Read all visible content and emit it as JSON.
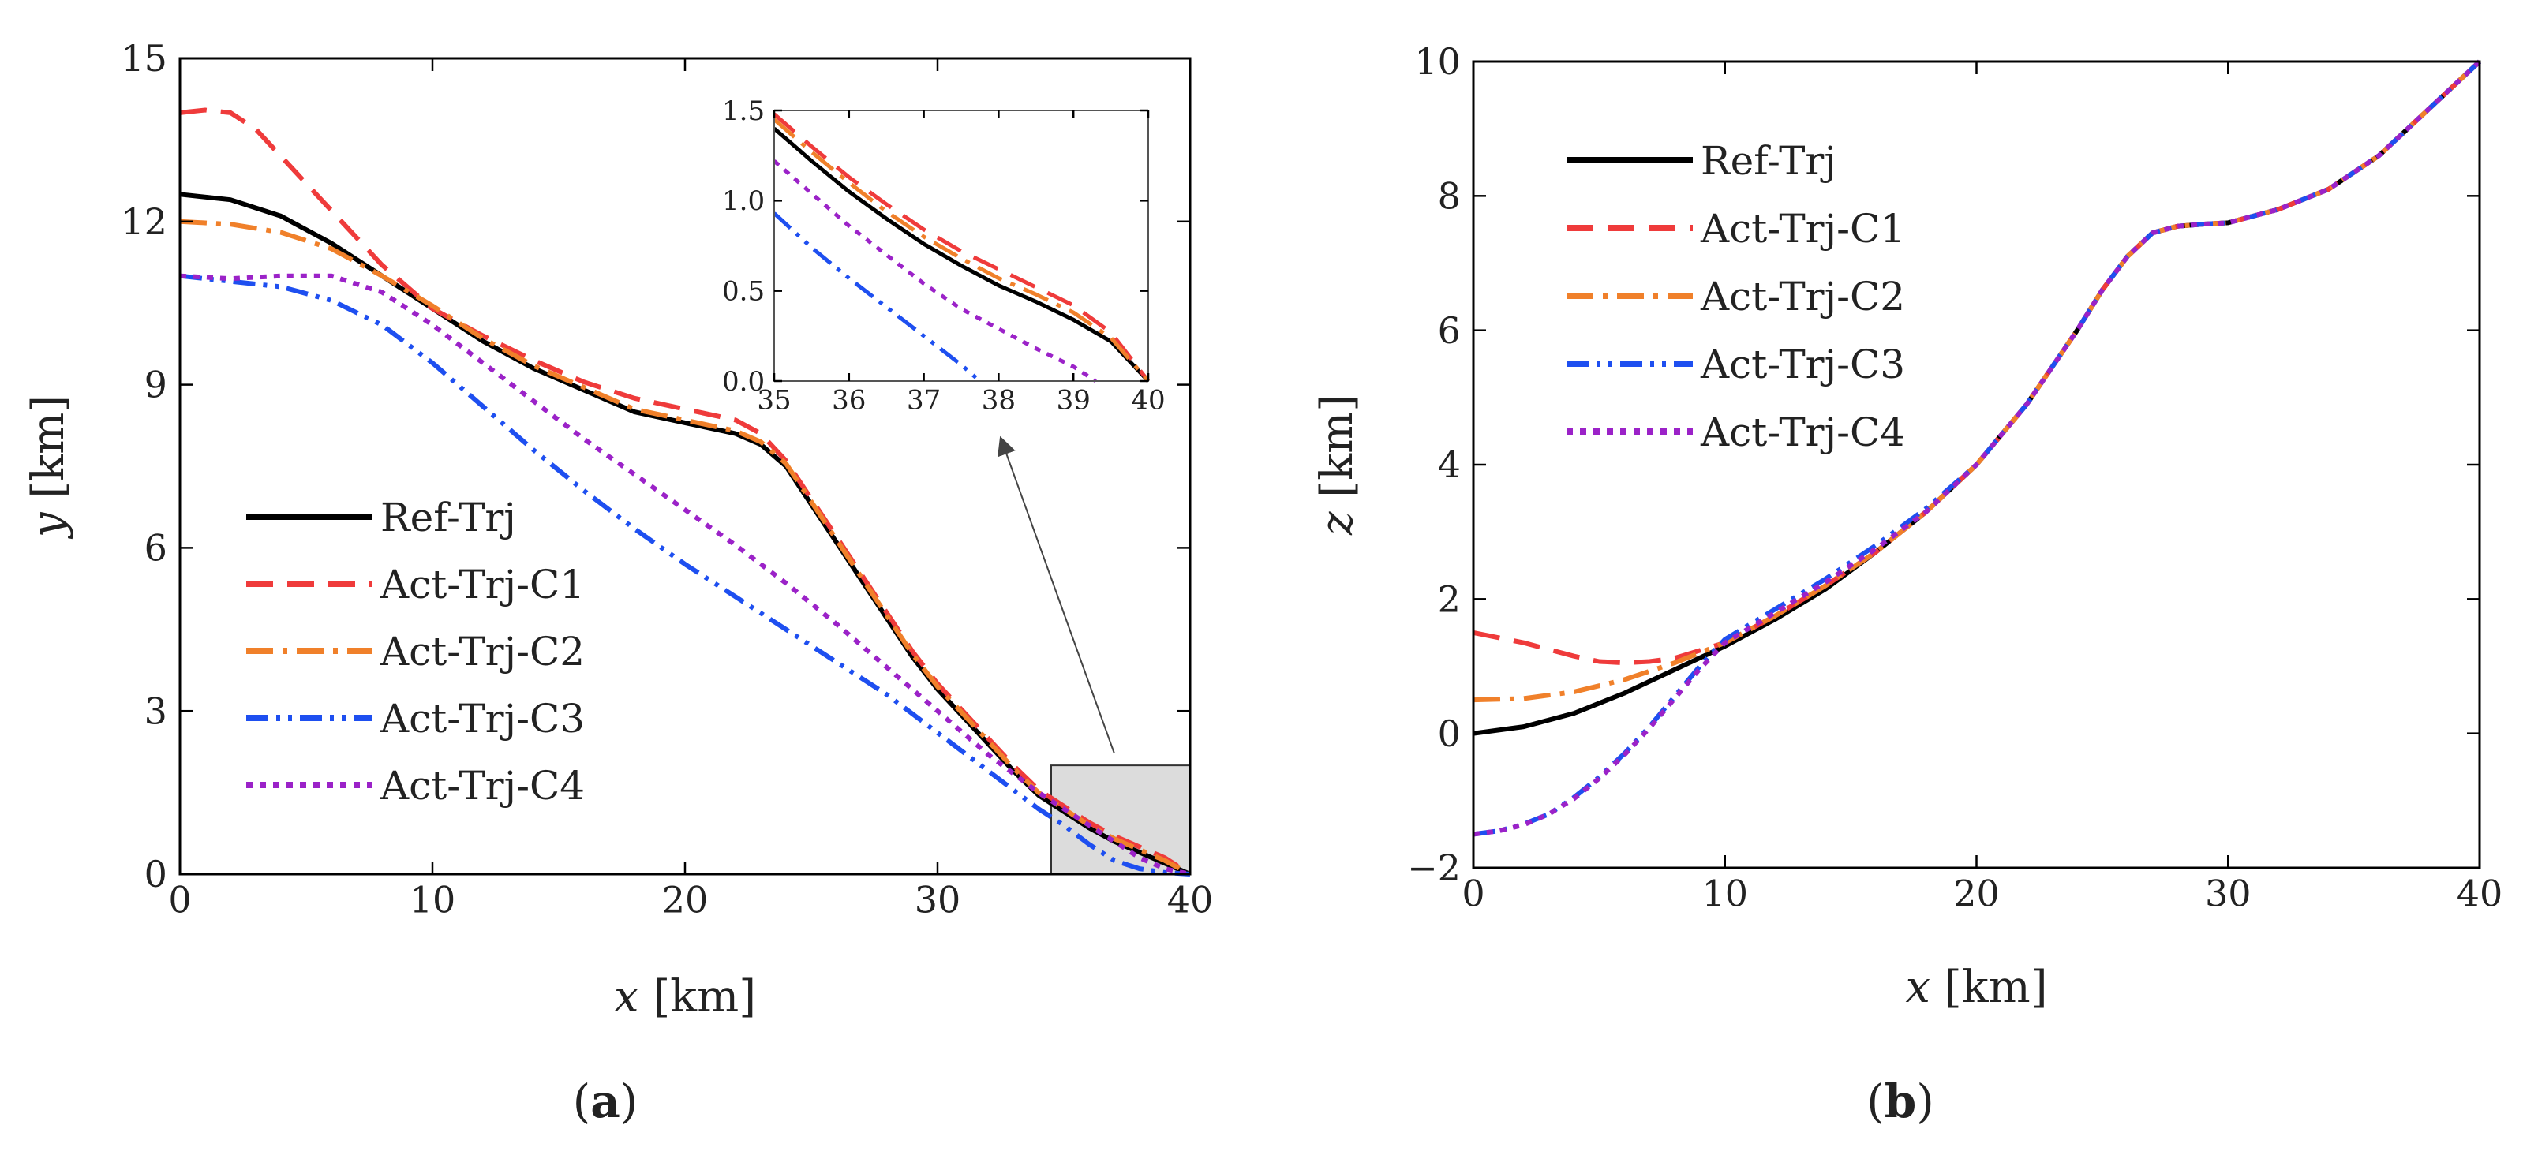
{
  "figure": {
    "panels": [
      {
        "label_open": "(",
        "label_letter": "a",
        "label_close": ")"
      },
      {
        "label_open": "(",
        "label_letter": "b",
        "label_close": ")"
      }
    ]
  },
  "colors": {
    "ref": "#000000",
    "c1": "#ef3b3b",
    "c2": "#f0802a",
    "c3": "#1e4ff0",
    "c4": "#9b22c8",
    "zoom_box": "#dcdcdc"
  },
  "chart_data": [
    {
      "type": "line",
      "panel": "a",
      "xlabel_var": "x",
      "xlabel_unit": " [km]",
      "ylabel_var": "y",
      "ylabel_unit": " [km]",
      "xlim": [
        0,
        40
      ],
      "ylim": [
        0,
        15
      ],
      "xticks": [
        "0",
        "10",
        "20",
        "30",
        "40"
      ],
      "yticks": [
        "0",
        "3",
        "6",
        "9",
        "12",
        "15"
      ],
      "legend_position": "center-left",
      "series": [
        {
          "name": "Ref-Trj",
          "key": "ref",
          "dash": "solid",
          "x": [
            0,
            2,
            4,
            6,
            8,
            10,
            12,
            14,
            16,
            18,
            20,
            22,
            23,
            24,
            25,
            26,
            27,
            28,
            29,
            30,
            31,
            32,
            33,
            34,
            35,
            36,
            37,
            38,
            39,
            40
          ],
          "y": [
            12.5,
            12.4,
            12.1,
            11.6,
            11.0,
            10.4,
            9.8,
            9.3,
            8.9,
            8.5,
            8.3,
            8.1,
            7.9,
            7.5,
            6.8,
            6.1,
            5.4,
            4.7,
            4.0,
            3.4,
            2.9,
            2.4,
            1.9,
            1.45,
            1.15,
            0.85,
            0.6,
            0.4,
            0.2,
            0.0
          ]
        },
        {
          "name": "Act-Trj-C1",
          "key": "c1",
          "dash": "dashed",
          "x": [
            0,
            1,
            2,
            3,
            4,
            6,
            8,
            10,
            12,
            14,
            16,
            18,
            20,
            22,
            23,
            24,
            25,
            26,
            27,
            28,
            29,
            30,
            31,
            32,
            33,
            34,
            35,
            36,
            37,
            38,
            39,
            40
          ],
          "y": [
            14.0,
            14.05,
            14.0,
            13.7,
            13.2,
            12.2,
            11.2,
            10.4,
            9.9,
            9.45,
            9.05,
            8.75,
            8.55,
            8.35,
            8.1,
            7.6,
            6.9,
            6.2,
            5.5,
            4.8,
            4.1,
            3.5,
            3.0,
            2.5,
            2.0,
            1.55,
            1.25,
            0.95,
            0.7,
            0.5,
            0.3,
            0.0
          ]
        },
        {
          "name": "Act-Trj-C2",
          "key": "c2",
          "dash": "dashdot",
          "x": [
            0,
            2,
            4,
            6,
            8,
            10,
            12,
            14,
            16,
            18,
            20,
            22,
            23,
            24,
            25,
            26,
            27,
            28,
            29,
            30,
            31,
            32,
            33,
            34,
            35,
            36,
            37,
            38,
            39,
            40
          ],
          "y": [
            12.0,
            11.95,
            11.8,
            11.5,
            11.0,
            10.45,
            9.85,
            9.35,
            8.95,
            8.55,
            8.35,
            8.15,
            7.95,
            7.55,
            6.85,
            6.15,
            5.45,
            4.75,
            4.05,
            3.45,
            2.95,
            2.45,
            1.95,
            1.5,
            1.2,
            0.9,
            0.65,
            0.45,
            0.25,
            0.0
          ]
        },
        {
          "name": "Act-Trj-C3",
          "key": "c3",
          "dash": "dashdotdot",
          "x": [
            0,
            2,
            4,
            6,
            8,
            10,
            12,
            14,
            16,
            18,
            20,
            22,
            24,
            26,
            28,
            30,
            32,
            34,
            35,
            36,
            37,
            38,
            39,
            40
          ],
          "y": [
            11.0,
            10.9,
            10.8,
            10.55,
            10.1,
            9.4,
            8.6,
            7.8,
            7.05,
            6.35,
            5.7,
            5.1,
            4.5,
            3.9,
            3.3,
            2.6,
            1.9,
            1.2,
            0.9,
            0.55,
            0.25,
            0.1,
            0.03,
            0.0
          ]
        },
        {
          "name": "Act-Trj-C4",
          "key": "c4",
          "dash": "dotted",
          "x": [
            0,
            2,
            4,
            6,
            8,
            10,
            12,
            14,
            16,
            18,
            20,
            22,
            24,
            26,
            28,
            30,
            32,
            34,
            35,
            36,
            37,
            38,
            39,
            40
          ],
          "y": [
            11.0,
            10.95,
            11.0,
            11.0,
            10.7,
            10.1,
            9.4,
            8.7,
            8.0,
            7.35,
            6.7,
            6.05,
            5.35,
            4.6,
            3.8,
            3.0,
            2.2,
            1.5,
            1.2,
            0.9,
            0.6,
            0.3,
            0.1,
            0.0
          ]
        }
      ],
      "inset": {
        "xlim": [
          35,
          40
        ],
        "ylim": [
          0,
          1.5
        ],
        "xticks": [
          "35",
          "36",
          "37",
          "38",
          "39",
          "40"
        ],
        "yticks": [
          "0.0",
          "0.5",
          "1.0",
          "1.5"
        ],
        "zoom_region": {
          "x": [
            34.5,
            40
          ],
          "y": [
            0,
            2
          ]
        },
        "series": [
          {
            "key": "ref",
            "dash": "solid",
            "x": [
              35,
              35.5,
              36,
              36.5,
              37,
              37.5,
              38,
              38.5,
              39,
              39.5,
              40
            ],
            "y": [
              1.4,
              1.22,
              1.05,
              0.9,
              0.76,
              0.64,
              0.53,
              0.44,
              0.34,
              0.22,
              0.0
            ]
          },
          {
            "key": "c1",
            "dash": "dashed",
            "x": [
              35,
              35.5,
              36,
              36.5,
              37,
              37.5,
              38,
              38.5,
              39,
              39.5,
              40
            ],
            "y": [
              1.48,
              1.3,
              1.13,
              0.98,
              0.84,
              0.72,
              0.62,
              0.52,
              0.42,
              0.27,
              0.0
            ]
          },
          {
            "key": "c2",
            "dash": "dashdot",
            "x": [
              35,
              35.5,
              36,
              36.5,
              37,
              37.5,
              38,
              38.5,
              39,
              39.5,
              40
            ],
            "y": [
              1.45,
              1.27,
              1.1,
              0.94,
              0.8,
              0.68,
              0.57,
              0.48,
              0.38,
              0.24,
              0.0
            ]
          },
          {
            "key": "c3",
            "dash": "dashdotdot",
            "x": [
              35,
              35.5,
              36,
              36.5,
              37,
              37.5,
              37.75
            ],
            "y": [
              0.93,
              0.74,
              0.57,
              0.41,
              0.25,
              0.09,
              0.0
            ]
          },
          {
            "key": "c4",
            "dash": "dotted",
            "x": [
              35,
              35.5,
              36,
              36.5,
              37,
              37.5,
              38,
              38.5,
              39,
              39.3
            ],
            "y": [
              1.22,
              1.04,
              0.86,
              0.7,
              0.54,
              0.4,
              0.29,
              0.18,
              0.08,
              0.0
            ]
          }
        ]
      }
    },
    {
      "type": "line",
      "panel": "b",
      "xlabel_var": "x",
      "xlabel_unit": " [km]",
      "ylabel_var": "z",
      "ylabel_unit": " [km]",
      "xlim": [
        0,
        40
      ],
      "ylim": [
        -2,
        10
      ],
      "xticks": [
        "0",
        "10",
        "20",
        "30",
        "40"
      ],
      "yticks": [
        "−2",
        "0",
        "2",
        "4",
        "6",
        "8",
        "10"
      ],
      "legend_position": "top-left",
      "series": [
        {
          "name": "Ref-Trj",
          "key": "ref",
          "dash": "solid",
          "x": [
            0,
            2,
            4,
            6,
            8,
            10,
            12,
            14,
            16,
            18,
            20,
            22,
            24,
            25,
            26,
            27,
            28,
            29,
            30,
            32,
            34,
            36,
            38,
            40
          ],
          "y": [
            0.0,
            0.1,
            0.3,
            0.6,
            0.95,
            1.3,
            1.7,
            2.15,
            2.7,
            3.3,
            4.0,
            4.9,
            6.0,
            6.6,
            7.1,
            7.45,
            7.55,
            7.58,
            7.6,
            7.8,
            8.1,
            8.6,
            9.3,
            10.0
          ]
        },
        {
          "name": "Act-Trj-C1",
          "key": "c1",
          "dash": "dashed",
          "x": [
            0,
            2,
            4,
            5,
            6,
            7,
            8,
            10,
            12,
            14,
            16,
            18,
            20,
            22,
            24,
            25,
            26,
            27,
            28,
            29,
            30,
            32,
            34,
            36,
            38,
            40
          ],
          "y": [
            1.5,
            1.35,
            1.15,
            1.07,
            1.05,
            1.07,
            1.12,
            1.35,
            1.75,
            2.2,
            2.7,
            3.3,
            4.0,
            4.9,
            6.0,
            6.6,
            7.1,
            7.45,
            7.55,
            7.58,
            7.6,
            7.8,
            8.1,
            8.6,
            9.3,
            10.0
          ]
        },
        {
          "name": "Act-Trj-C2",
          "key": "c2",
          "dash": "dashdot",
          "x": [
            0,
            2,
            4,
            6,
            8,
            10,
            12,
            14,
            16,
            18,
            20,
            22,
            24,
            25,
            26,
            27,
            28,
            29,
            30,
            32,
            34,
            36,
            38,
            40
          ],
          "y": [
            0.5,
            0.52,
            0.62,
            0.8,
            1.05,
            1.35,
            1.75,
            2.2,
            2.7,
            3.3,
            4.0,
            4.9,
            6.0,
            6.6,
            7.1,
            7.45,
            7.55,
            7.58,
            7.6,
            7.8,
            8.1,
            8.6,
            9.3,
            10.0
          ]
        },
        {
          "name": "Act-Trj-C3",
          "key": "c3",
          "dash": "dashdotdot",
          "x": [
            0,
            1,
            2,
            3,
            4,
            5,
            6,
            7,
            8,
            9,
            10,
            12,
            14,
            16,
            18,
            20,
            22,
            24,
            25,
            26,
            27,
            28,
            29,
            30,
            32,
            34,
            36,
            38,
            40
          ],
          "y": [
            -1.5,
            -1.45,
            -1.35,
            -1.2,
            -0.95,
            -0.65,
            -0.3,
            0.1,
            0.55,
            1.0,
            1.4,
            1.85,
            2.3,
            2.8,
            3.35,
            4.0,
            4.9,
            6.0,
            6.6,
            7.1,
            7.45,
            7.55,
            7.58,
            7.6,
            7.8,
            8.1,
            8.6,
            9.3,
            10.0
          ]
        },
        {
          "name": "Act-Trj-C4",
          "key": "c4",
          "dash": "dotted",
          "x": [
            0,
            1,
            2,
            3,
            4,
            5,
            6,
            7,
            8,
            9,
            10,
            12,
            14,
            16,
            18,
            20,
            22,
            24,
            25,
            26,
            27,
            28,
            29,
            30,
            32,
            34,
            36,
            38,
            40
          ],
          "y": [
            -1.5,
            -1.45,
            -1.36,
            -1.2,
            -0.97,
            -0.67,
            -0.32,
            0.08,
            0.52,
            0.96,
            1.35,
            1.8,
            2.25,
            2.75,
            3.3,
            4.0,
            4.9,
            6.0,
            6.6,
            7.1,
            7.45,
            7.55,
            7.58,
            7.6,
            7.8,
            8.1,
            8.6,
            9.3,
            10.0
          ]
        }
      ]
    }
  ]
}
